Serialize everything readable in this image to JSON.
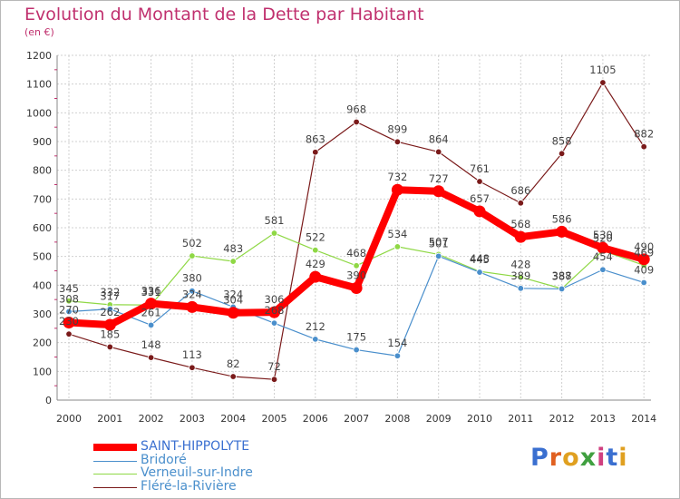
{
  "chart_data": {
    "type": "line",
    "title": "Evolution du Montant de la Dette par Habitant",
    "subtitle": "(en €)",
    "xlabel": "",
    "ylabel": "",
    "x": [
      "2000",
      "2001",
      "2002",
      "2003",
      "2004",
      "2005",
      "2006",
      "2007",
      "2008",
      "2009",
      "2010",
      "2011",
      "2012",
      "2013",
      "2014"
    ],
    "ylim": [
      0,
      1200
    ],
    "yticks": [
      "0",
      "100",
      "200",
      "300",
      "400",
      "500",
      "600",
      "700",
      "800",
      "900",
      "1000",
      "1100",
      "1200"
    ],
    "grid": true,
    "legend_position": "bottom-left",
    "series": [
      {
        "name": "SAINT-HIPPOLYTE",
        "color": "#ff0000",
        "values": [
          270,
          262,
          336,
          324,
          304,
          306,
          429,
          390,
          732,
          727,
          657,
          568,
          586,
          530,
          490
        ]
      },
      {
        "name": "Bridoré",
        "color": "#4a8fcc",
        "values": [
          308,
          317,
          261,
          380,
          324,
          268,
          212,
          175,
          154,
          501,
          445,
          389,
          387,
          454,
          409
        ]
      },
      {
        "name": "Verneuil-sur-Indre",
        "color": "#8fd845",
        "values": [
          345,
          332,
          331,
          502,
          483,
          581,
          522,
          468,
          534,
          507,
          448,
          428,
          388,
          520,
          469
        ]
      },
      {
        "name": "Fléré-la-Rivière",
        "color": "#7a1a1a",
        "values": [
          230,
          185,
          148,
          113,
          82,
          72,
          863,
          968,
          899,
          864,
          761,
          686,
          858,
          1105,
          882
        ]
      }
    ]
  },
  "brand": {
    "letters": [
      "P",
      "r",
      "o",
      "x",
      "i",
      "t",
      "i"
    ],
    "colors": [
      "#3a6fd0",
      "#e06020",
      "#e0a020",
      "#40a040",
      "#d04080",
      "#3a6fd0",
      "#e0a020"
    ]
  }
}
